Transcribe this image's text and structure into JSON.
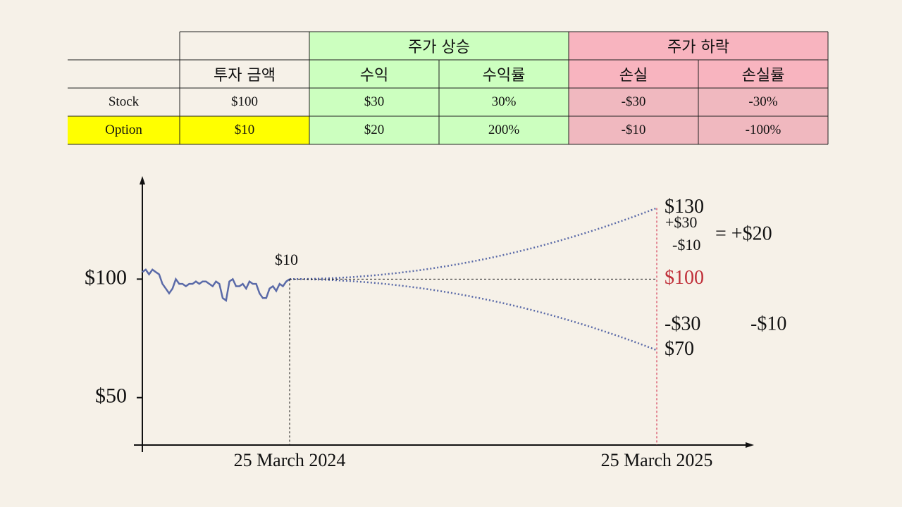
{
  "table": {
    "groups": [
      "주가 상승",
      "주가 하락"
    ],
    "header": [
      "투자 금액",
      "수익",
      "수익률",
      "손실",
      "손실률"
    ],
    "rows": [
      [
        "Stock",
        "$100",
        "$30",
        "30%",
        "-$30",
        "-30%"
      ],
      [
        "Option",
        "$10",
        "$20",
        "200%",
        "-$10",
        "-100%"
      ]
    ]
  },
  "chart_data": {
    "type": "line",
    "ylim": [
      30,
      142
    ],
    "yticks": [
      {
        "value": 50,
        "label": "$50"
      },
      {
        "value": 100,
        "label": "$100"
      }
    ],
    "x_labels": [
      "25 March 2024",
      "25 March 2025"
    ],
    "series": [
      {
        "color": "#5a6aa8",
        "values": [
          103,
          104,
          102,
          104,
          103,
          102,
          98,
          96,
          94,
          96,
          100,
          98,
          98,
          97,
          98,
          98,
          99,
          98,
          99,
          99,
          98,
          97,
          99,
          98,
          92,
          91,
          99,
          100,
          97,
          97,
          98,
          96,
          99,
          98,
          98,
          94,
          92,
          92,
          96,
          97,
          95,
          98,
          97,
          99,
          100
        ]
      },
      {
        "color": "#5a6aa8",
        "values": [
          100,
          130
        ],
        "value_labels": [
          null,
          "$130"
        ]
      },
      {
        "color": "#5a6aa8",
        "values": [
          100,
          70
        ],
        "value_labels": [
          null,
          "$70"
        ]
      }
    ],
    "reference": {
      "value": 100,
      "label": "$100",
      "color": "#c0303a"
    },
    "annotations": [
      "$10",
      "+$30",
      "-$10",
      "= +$20",
      "-$30",
      "-$10"
    ]
  }
}
